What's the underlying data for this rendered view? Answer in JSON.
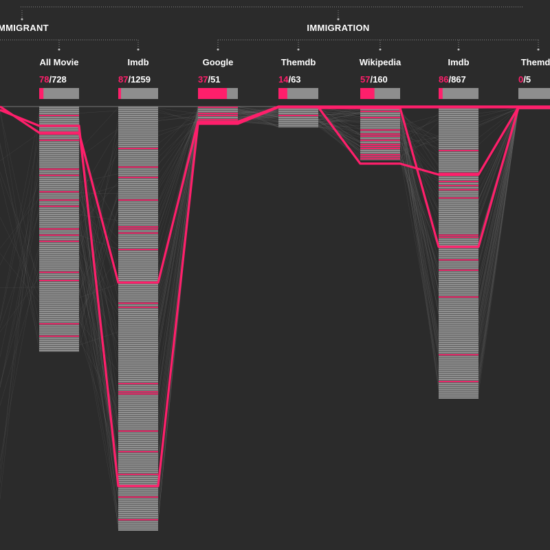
{
  "colors": {
    "background": "#2b2b2b",
    "accent": "#ff1f6b",
    "bar": "#8e8e8e",
    "text": "#ffffff",
    "link": "#9a9a9a"
  },
  "groups": [
    {
      "label": "IMMIGRANT"
    },
    {
      "label": "IMMIGRATION"
    }
  ],
  "chart_data": {
    "type": "parallel-sets",
    "columns": [
      {
        "name": "All Movie",
        "group": "IMMIGRANT",
        "selected": 78,
        "total": 728
      },
      {
        "name": "Imdb",
        "group": "IMMIGRANT",
        "selected": 87,
        "total": 1259
      },
      {
        "name": "Google",
        "group": "IMMIGRATION",
        "selected": 37,
        "total": 51
      },
      {
        "name": "Themdb",
        "group": "IMMIGRATION",
        "selected": 14,
        "total": 63
      },
      {
        "name": "Wikipedia",
        "group": "IMMIGRATION",
        "selected": 57,
        "total": 160
      },
      {
        "name": "Imdb",
        "group": "IMMIGRATION",
        "selected": 86,
        "total": 867
      },
      {
        "name": "Themdb",
        "group": "IMMIGRATION",
        "selected": 0,
        "total": 5
      }
    ]
  }
}
